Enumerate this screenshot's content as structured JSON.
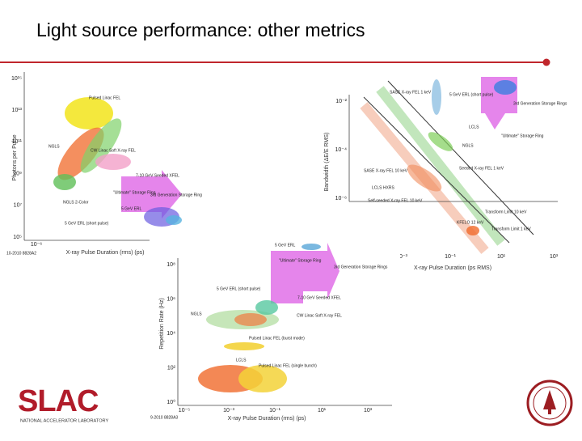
{
  "header": {
    "title": "Light source performance:  other metrics"
  },
  "panels": [
    {
      "y_label": "Photons per Pulse",
      "x_label": "X-ray Pulse Duration (rms) (ps)",
      "y_ticks": [
        "10¹⁵",
        "10¹³",
        "10¹¹",
        "10⁹",
        "10⁷",
        "10⁵"
      ],
      "x_ticks": [
        "10⁻⁶"
      ],
      "labels": [
        "Pulsed Linac FEL",
        "NGLS",
        "CW Linac Soft X-ray FEL",
        "7-10 GeV Seeded XFEL",
        "\"Ultimate\" Storage Ring",
        "3rd Generation Storage Ring",
        "NGLS 2-Color",
        "5 GeV ERL (short pulse)",
        "5 GeV ERL"
      ],
      "footer": "10-2010 8828A2"
    },
    {
      "y_label": "Bandwidth (ΔE/E RMS)",
      "x_label": "X-ray Pulse Duration (ps RMS)",
      "y_ticks": [
        "10⁻²",
        "10⁻⁴",
        "10⁻⁶"
      ],
      "x_ticks": [
        "10⁻³",
        "10⁻¹",
        "10¹",
        "10³"
      ],
      "labels": [
        "SASE X-ray FEL 1 keV",
        "5 GeV ERL (short pulse)",
        "3rd Generation Storage Rings",
        "LCLS",
        "\"Ultimate\" Storage Ring",
        "NGLS",
        "Seeded X-ray FEL 1 keV",
        "SASE X-ray FEL 10 keV",
        "LCLS HXRS",
        "Self-seeded X-ray FEL 10 keV",
        "KFELO 12 keV",
        "Transform Limit 10 keV",
        "Transform Limit 1 keV"
      ],
      "footer": ""
    },
    {
      "y_label": "Repetition Rate (Hz)",
      "x_label": "X-ray Pulse Duration (rms) (ps)",
      "y_ticks": [
        "10⁸",
        "10⁶",
        "10⁴",
        "10²",
        "10⁰"
      ],
      "x_ticks": [
        "10⁻⁵",
        "10⁻³",
        "10⁻¹",
        "10¹",
        "10³"
      ],
      "labels": [
        "5 GeV ERL",
        "\"Ultimate\" Storage Ring",
        "3rd Generation Storage Rings",
        "5 GeV ERL (short pulse)",
        "7-10 GeV Seeded XFEL",
        "NGLS",
        "CW Linac Soft X-ray FEL",
        "Pulsed Linac FEL (burst mode)",
        "LCLS",
        "Pulsed Linac FEL (single bunch)"
      ],
      "footer": "9-2010 8828A3"
    }
  ],
  "logo": {
    "name": "SLAC",
    "subtitle": "NATIONAL ACCELERATOR LABORATORY"
  }
}
